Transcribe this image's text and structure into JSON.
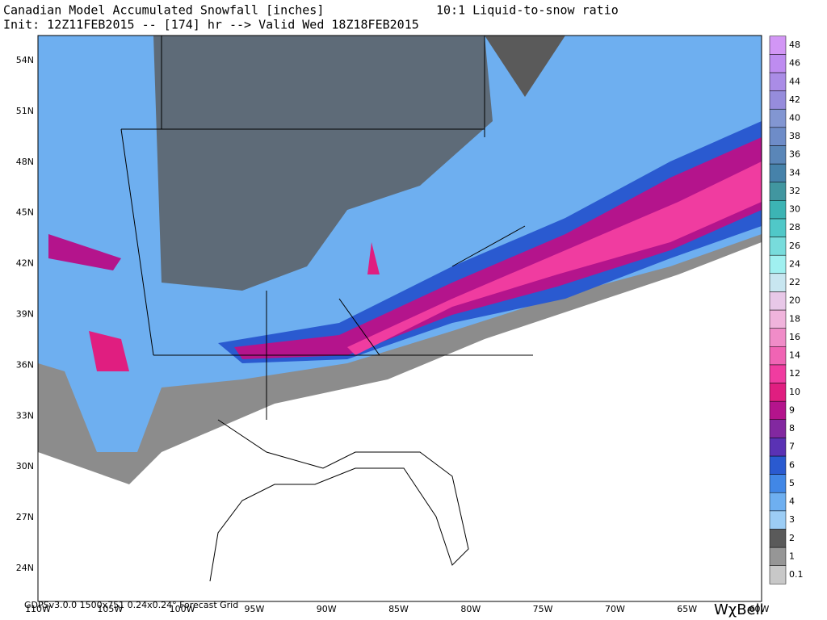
{
  "header": {
    "title": "Canadian Model Accumulated Snowfall [inches]",
    "ratio": "10:1 Liquid-to-snow ratio",
    "init": "Init: 12Z11FEB2015 -- [174] hr --> Valid Wed 18Z18FEB2015"
  },
  "map": {
    "lat_labels": [
      "54N",
      "51N",
      "48N",
      "45N",
      "42N",
      "39N",
      "36N",
      "33N",
      "30N",
      "27N",
      "24N"
    ],
    "lon_labels": [
      "110W",
      "105W",
      "100W",
      "95W",
      "90W",
      "85W",
      "80W",
      "75W",
      "70W",
      "65W",
      "60W"
    ]
  },
  "colorbar": {
    "labels": [
      "0.1",
      "1",
      "2",
      "3",
      "4",
      "5",
      "6",
      "7",
      "8",
      "9",
      "10",
      "12",
      "14",
      "16",
      "18",
      "20",
      "22",
      "24",
      "26",
      "28",
      "30",
      "32",
      "34",
      "36",
      "38",
      "40",
      "42",
      "44",
      "46",
      "48"
    ],
    "colors": [
      "#c8c8c8",
      "#969696",
      "#5a5a5a",
      "#9ccdf5",
      "#6eaff0",
      "#4187e6",
      "#2a5ad0",
      "#5a32b4",
      "#8228a0",
      "#b4148c",
      "#e01e80",
      "#f03ca0",
      "#f064b4",
      "#f08cc8",
      "#f0b4dc",
      "#e8c8e8",
      "#c8e6f0",
      "#a0f0f0",
      "#78dcdc",
      "#50c8c8",
      "#3cb4b4",
      "#4196a0",
      "#4682aa",
      "#5a86b8",
      "#6e8cc8",
      "#8296d2",
      "#968cdc",
      "#aa8ce6",
      "#be8cf0",
      "#d296f5"
    ]
  },
  "footer": {
    "grid": "GDPSv3.0.0 1500x751 0.24x0.24° Forecast Grid",
    "logo": "WχBell"
  }
}
